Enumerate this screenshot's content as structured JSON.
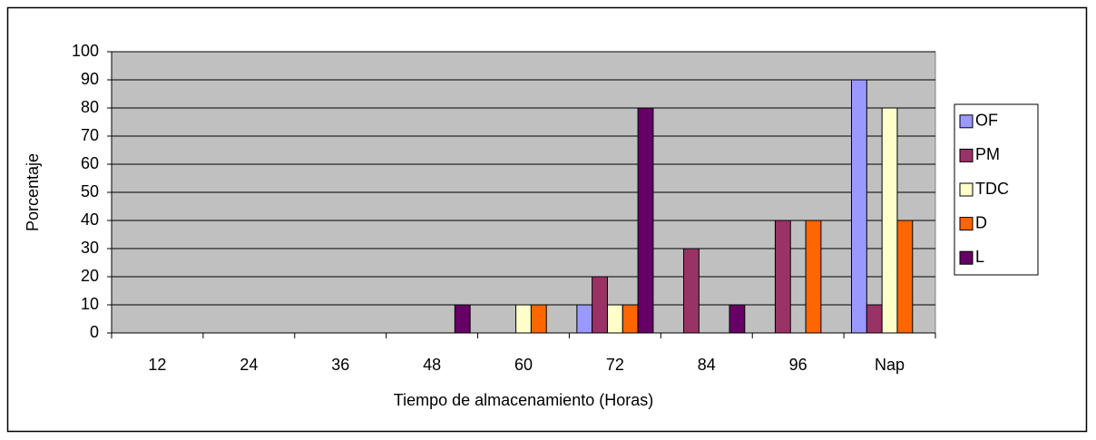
{
  "chart_data": {
    "type": "bar",
    "y_label": "Porcentaje",
    "x_label": "Tiempo de almacenamiento (Horas)",
    "categories": [
      "12",
      "24",
      "36",
      "48",
      "60",
      "72",
      "84",
      "96",
      "Nap"
    ],
    "series": [
      {
        "name": "OF",
        "color": "#9999ff",
        "values": [
          0,
          0,
          0,
          0,
          0,
          10,
          0,
          0,
          90
        ]
      },
      {
        "name": "PM",
        "color": "#993366",
        "values": [
          0,
          0,
          0,
          0,
          0,
          20,
          30,
          40,
          10
        ]
      },
      {
        "name": "TDC",
        "color": "#ffffcc",
        "values": [
          0,
          0,
          0,
          0,
          10,
          10,
          0,
          0,
          80
        ]
      },
      {
        "name": "D",
        "color": "#ff6600",
        "values": [
          0,
          0,
          0,
          0,
          10,
          10,
          0,
          40,
          40
        ]
      },
      {
        "name": "L",
        "color": "#660066",
        "values": [
          0,
          0,
          0,
          10,
          0,
          80,
          10,
          0,
          0
        ]
      }
    ],
    "ylim": [
      0,
      100
    ],
    "yticks": [
      0,
      10,
      20,
      30,
      40,
      50,
      60,
      70,
      80,
      90,
      100
    ],
    "grid": true,
    "plot_background": "#c0c0c0",
    "legend": "right"
  }
}
